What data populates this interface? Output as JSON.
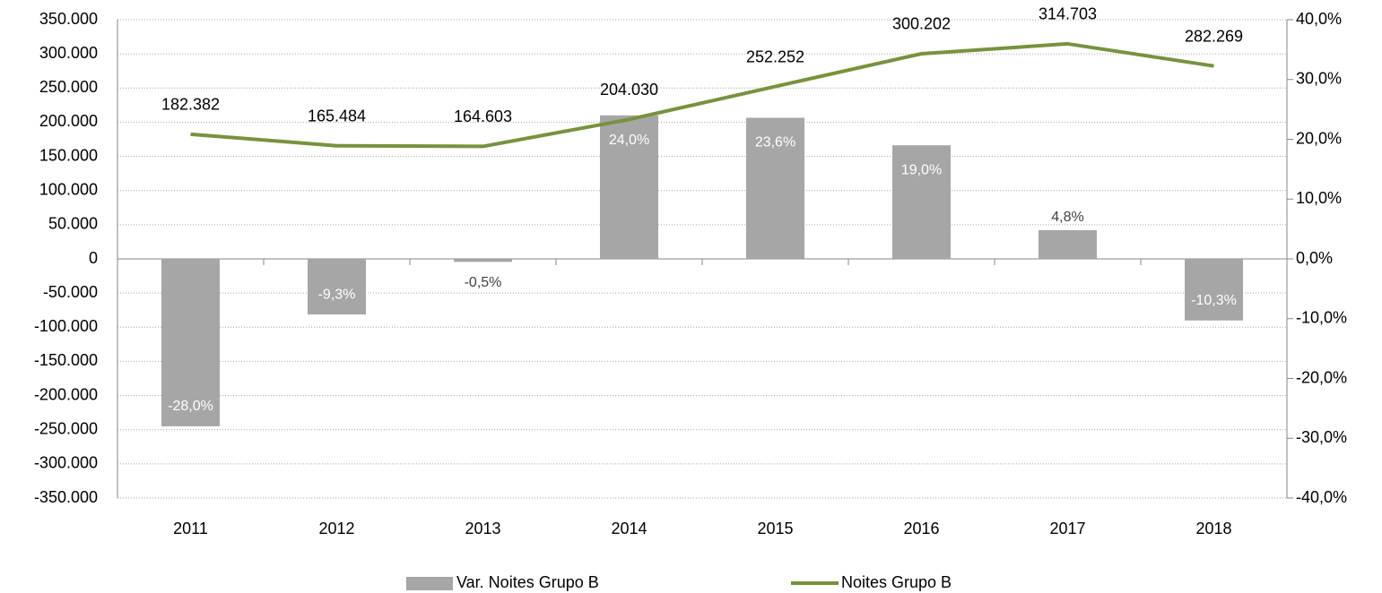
{
  "chart_data": {
    "type": "combo",
    "categories": [
      "2011",
      "2012",
      "2013",
      "2014",
      "2015",
      "2016",
      "2017",
      "2018"
    ],
    "series": [
      {
        "name": "Var. Noites Grupo B",
        "type": "bar",
        "axis": "y2",
        "color": "#a6a6a6",
        "values": [
          -28.0,
          -9.3,
          -0.5,
          24.0,
          23.6,
          19.0,
          4.8,
          -10.3
        ],
        "value_labels": [
          "-28,0%",
          "-9,3%",
          "-0,5%",
          "24,0%",
          "23,6%",
          "19,0%",
          "4,8%",
          "-10,3%"
        ]
      },
      {
        "name": "Noites Grupo B",
        "type": "line",
        "color": "#77933c",
        "values": [
          182382,
          165484,
          164603,
          204030,
          252252,
          300202,
          314703,
          282269
        ],
        "value_labels": [
          "182.382",
          "165.484",
          "164.603",
          "204.030",
          "252.252",
          "300.202",
          "314.703",
          "282.269"
        ]
      }
    ],
    "ylim": [
      -350000,
      350000
    ],
    "yticks": [
      {
        "value": 350000,
        "label": "350.000"
      },
      {
        "value": 300000,
        "label": "300.000"
      },
      {
        "value": 250000,
        "label": "250.000"
      },
      {
        "value": 200000,
        "label": "200.000"
      },
      {
        "value": 150000,
        "label": "150.000"
      },
      {
        "value": 100000,
        "label": "100.000"
      },
      {
        "value": 50000,
        "label": "50.000"
      },
      0,
      {
        "value": -50000,
        "label": "-50.000"
      },
      {
        "value": -100000,
        "label": "-100.000"
      },
      {
        "value": -150000,
        "label": "-150.000"
      },
      {
        "value": -200000,
        "label": "-200.000"
      },
      {
        "value": -250000,
        "label": "-250.000"
      },
      {
        "value": -300000,
        "label": "-300.000"
      },
      {
        "value": -350000,
        "label": "-350.000"
      }
    ],
    "y2lim": [
      -40,
      40
    ],
    "y2ticks": [
      {
        "value": 40,
        "label": "40,0%"
      },
      {
        "value": 30,
        "label": "30,0%"
      },
      {
        "value": 20,
        "label": "20,0%"
      },
      {
        "value": 10,
        "label": "10,0%"
      },
      {
        "value": 0,
        "label": "0,0%"
      },
      {
        "value": -10,
        "label": "-10,0%"
      },
      {
        "value": -20,
        "label": "-20,0%"
      },
      {
        "value": -30,
        "label": "-30,0%"
      },
      {
        "value": -40,
        "label": "-40,0%"
      }
    ],
    "grid": true,
    "legend": "bottom"
  }
}
